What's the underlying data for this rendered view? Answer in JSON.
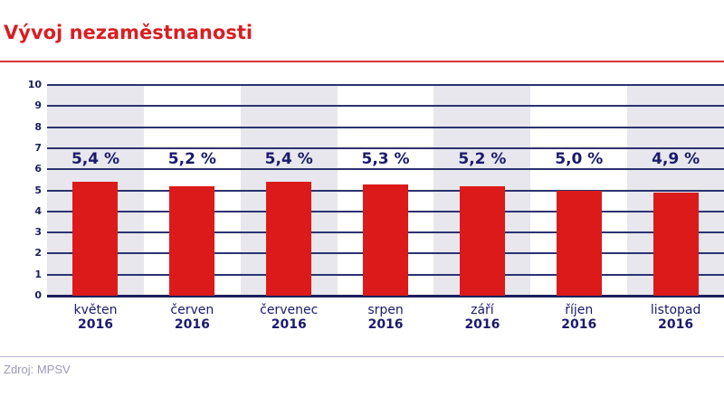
{
  "header": {
    "title": "Vývoj nezaměstnanosti"
  },
  "footer": {
    "source": "Zdroj: MPSV"
  },
  "colors": {
    "title": "#d81e23",
    "bar": "#dc1a1a",
    "text_navy": "#1a1a6e",
    "band_gray": "#e7e7ed",
    "gridline": "#2c3270"
  },
  "chart_data": {
    "type": "bar",
    "title": "Vývoj nezaměstnanosti",
    "xlabel": "",
    "ylabel": "",
    "ylim": [
      0,
      10
    ],
    "yticks": [
      0,
      1,
      2,
      3,
      4,
      5,
      6,
      7,
      8,
      9,
      10
    ],
    "grid": true,
    "legend": null,
    "categories": [
      "květen 2016",
      "červen 2016",
      "červenec 2016",
      "srpen 2016",
      "září 2016",
      "říjen 2016",
      "listopad 2016"
    ],
    "months": [
      "květen",
      "červen",
      "červenec",
      "srpen",
      "září",
      "říjen",
      "listopad"
    ],
    "years": [
      "2016",
      "2016",
      "2016",
      "2016",
      "2016",
      "2016",
      "2016"
    ],
    "values": [
      5.4,
      5.2,
      5.4,
      5.3,
      5.2,
      5.0,
      4.9
    ],
    "value_labels": [
      "5,4 %",
      "5,2 %",
      "5,4 %",
      "5,3 %",
      "5,2 %",
      "5,0 %",
      "4,9 %"
    ],
    "source": "Zdroj: MPSV"
  }
}
